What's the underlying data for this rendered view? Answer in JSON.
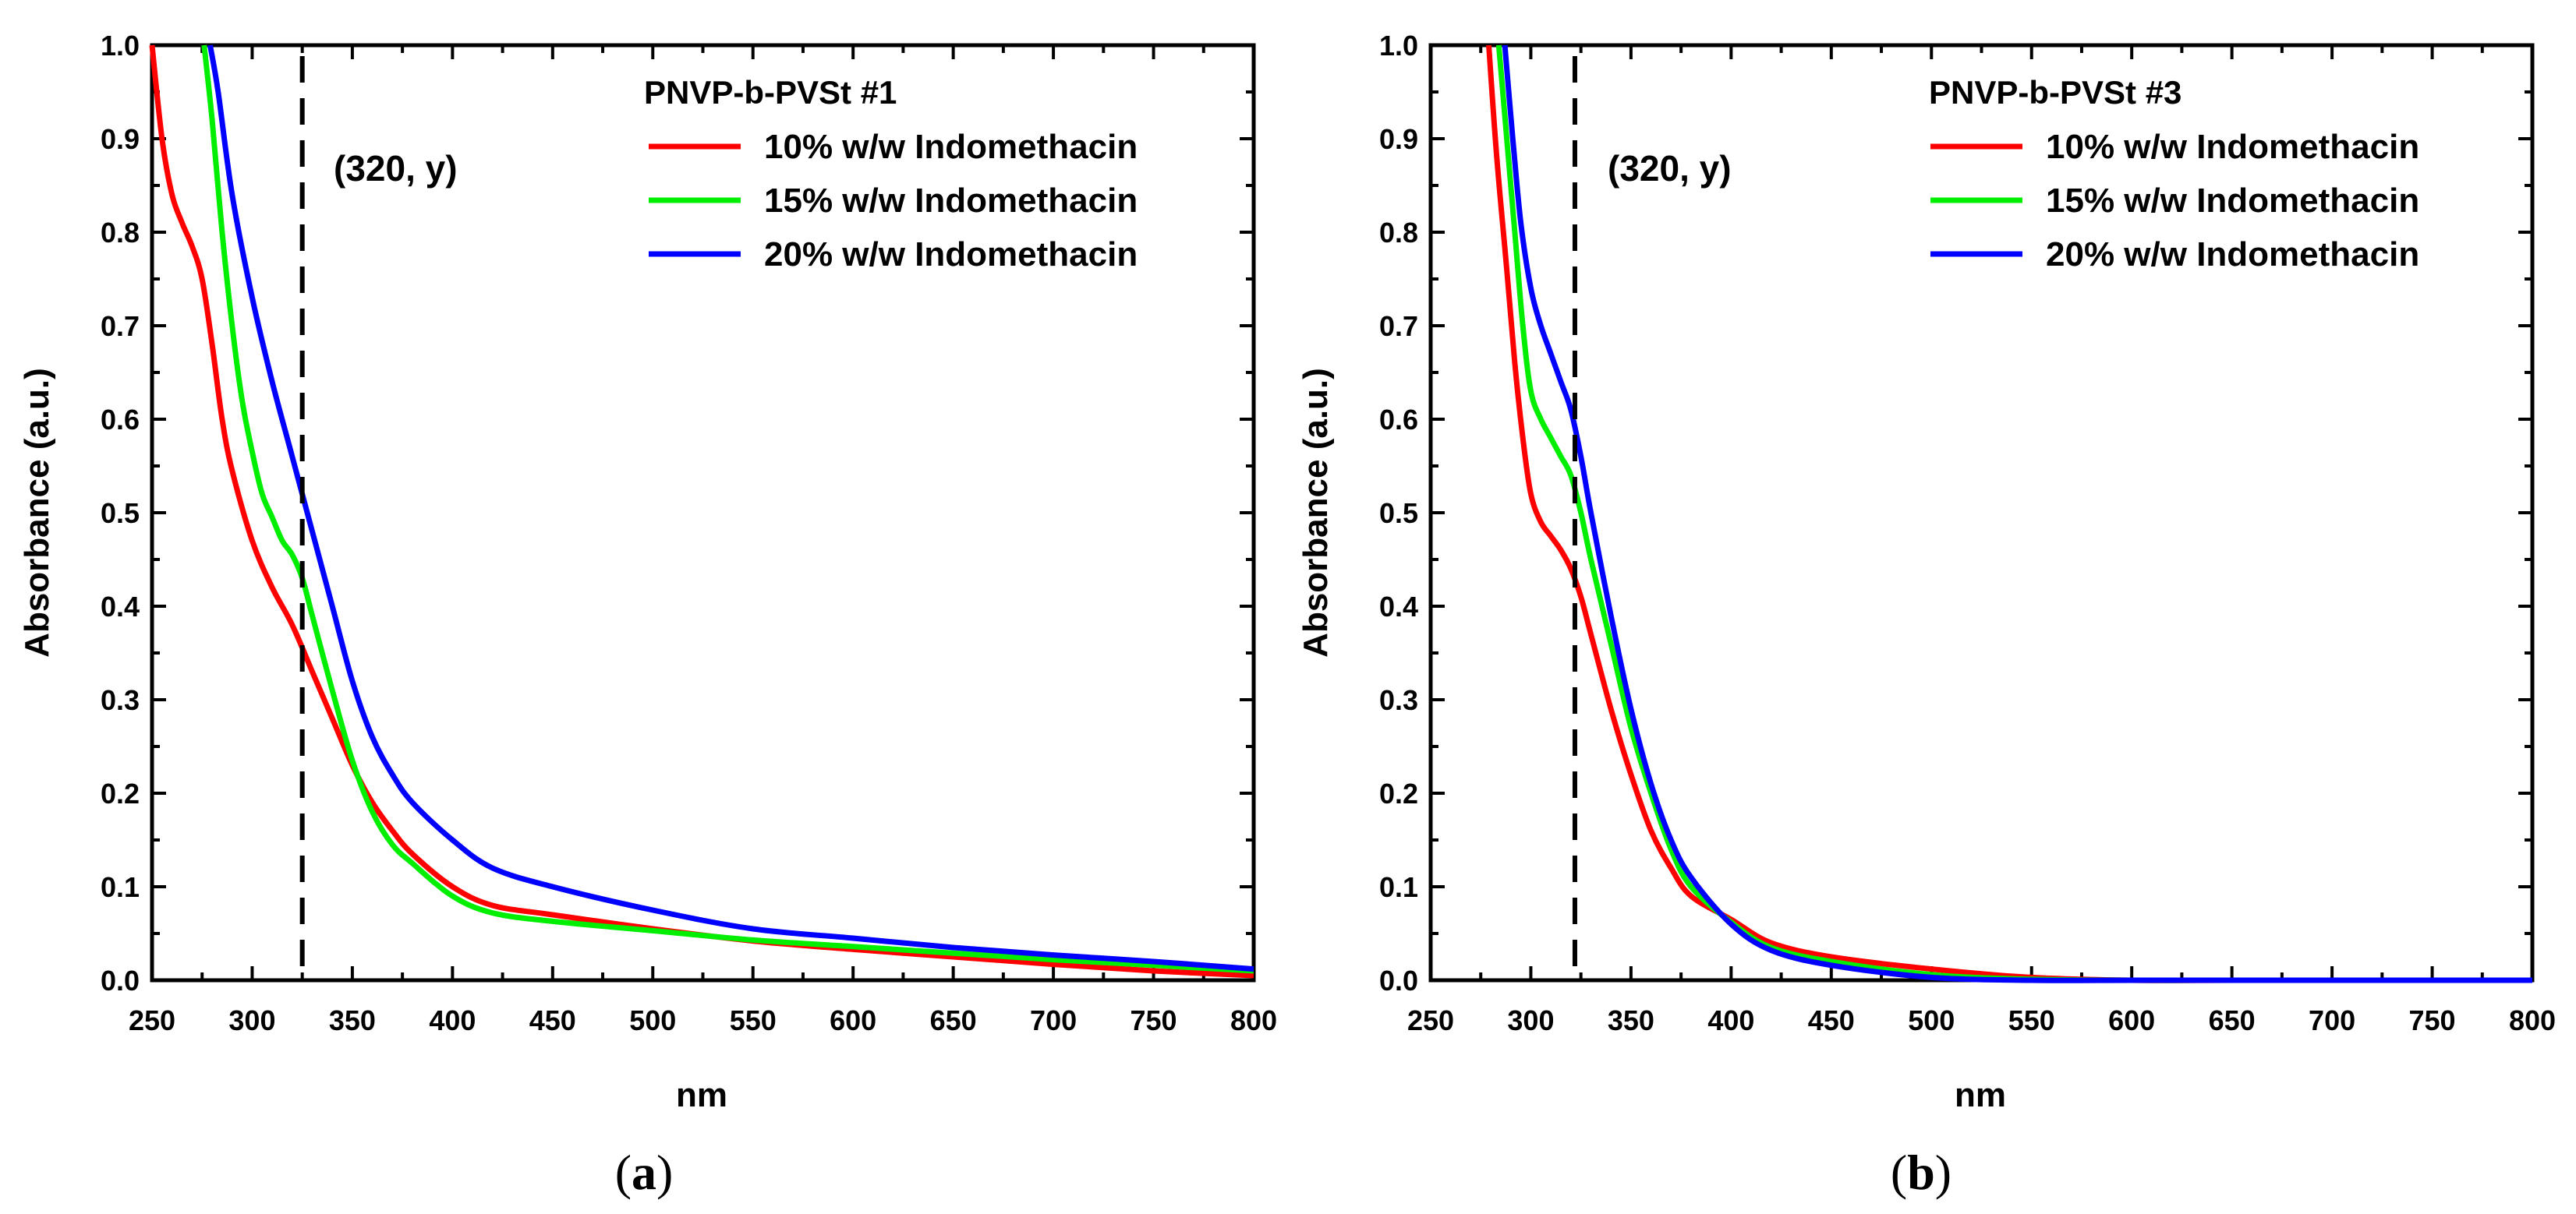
{
  "chart_data": [
    {
      "panel": "a",
      "type": "line",
      "panel_label_open": "(",
      "panel_label_letter": "a",
      "panel_label_close": ")",
      "legend_title": "PNVP-b-PVSt #1",
      "annotation": "(320, y)",
      "vline_x": 325,
      "xlabel": "nm",
      "ylabel": "Absorbance (a.u.)",
      "xlim": [
        250,
        800
      ],
      "ylim": [
        0.0,
        1.0
      ],
      "xticks": [
        "250",
        "300",
        "350",
        "400",
        "450",
        "500",
        "550",
        "600",
        "650",
        "700",
        "750",
        "800"
      ],
      "yticks": [
        "0.0",
        "0.1",
        "0.2",
        "0.3",
        "0.4",
        "0.5",
        "0.6",
        "0.7",
        "0.8",
        "0.9",
        "1.0"
      ],
      "series": [
        {
          "name": "10% w/w Indomethacin",
          "color": "#ff0000",
          "x": [
            250,
            255,
            260,
            265,
            270,
            275,
            280,
            285,
            290,
            300,
            310,
            320,
            330,
            340,
            350,
            360,
            370,
            380,
            400,
            420,
            450,
            500,
            550,
            600,
            650,
            700,
            750,
            800
          ],
          "y": [
            1.0,
            0.9,
            0.84,
            0.81,
            0.785,
            0.75,
            0.68,
            0.6,
            0.545,
            0.47,
            0.42,
            0.38,
            0.33,
            0.28,
            0.23,
            0.19,
            0.16,
            0.135,
            0.1,
            0.08,
            0.07,
            0.055,
            0.042,
            0.033,
            0.025,
            0.017,
            0.01,
            0.005
          ]
        },
        {
          "name": "15% w/w Indomethacin",
          "color": "#00ee00",
          "x": [
            276,
            280,
            285,
            290,
            295,
            300,
            305,
            310,
            315,
            320,
            325,
            330,
            340,
            350,
            360,
            370,
            380,
            400,
            420,
            450,
            500,
            550,
            600,
            650,
            700,
            750,
            800
          ],
          "y": [
            1.0,
            0.92,
            0.8,
            0.7,
            0.62,
            0.565,
            0.52,
            0.495,
            0.47,
            0.455,
            0.43,
            0.39,
            0.31,
            0.235,
            0.18,
            0.145,
            0.125,
            0.09,
            0.072,
            0.063,
            0.053,
            0.043,
            0.036,
            0.029,
            0.022,
            0.016,
            0.01
          ]
        },
        {
          "name": "20% w/w Indomethacin",
          "color": "#0000ff",
          "x": [
            279,
            283,
            290,
            300,
            310,
            320,
            330,
            340,
            350,
            360,
            370,
            380,
            400,
            420,
            450,
            500,
            550,
            600,
            650,
            700,
            750,
            800
          ],
          "y": [
            1.0,
            0.95,
            0.84,
            0.73,
            0.64,
            0.56,
            0.48,
            0.4,
            0.32,
            0.26,
            0.22,
            0.19,
            0.15,
            0.12,
            0.1,
            0.075,
            0.055,
            0.045,
            0.035,
            0.027,
            0.02,
            0.012
          ]
        }
      ]
    },
    {
      "panel": "b",
      "type": "line",
      "panel_label_open": "(",
      "panel_label_letter": "b",
      "panel_label_close": ")",
      "legend_title": "PNVP-b-PVSt #3",
      "annotation": "(320, y)",
      "vline_x": 322,
      "xlabel": "nm",
      "ylabel": "Absorbance (a.u.)",
      "xlim": [
        250,
        800
      ],
      "ylim": [
        0.0,
        1.0
      ],
      "xticks": [
        "250",
        "300",
        "350",
        "400",
        "450",
        "500",
        "550",
        "600",
        "650",
        "700",
        "750",
        "800"
      ],
      "yticks": [
        "0.0",
        "0.1",
        "0.2",
        "0.3",
        "0.4",
        "0.5",
        "0.6",
        "0.7",
        "0.8",
        "0.9",
        "1.0"
      ],
      "series": [
        {
          "name": "10% w/w Indomethacin",
          "color": "#ff0000",
          "x": [
            279,
            283,
            288,
            292,
            296,
            300,
            305,
            310,
            315,
            320,
            325,
            330,
            340,
            350,
            360,
            370,
            380,
            400,
            420,
            450,
            500,
            550,
            600,
            650,
            700,
            750,
            800
          ],
          "y": [
            1.0,
            0.88,
            0.76,
            0.66,
            0.58,
            0.52,
            0.49,
            0.475,
            0.46,
            0.44,
            0.41,
            0.37,
            0.29,
            0.22,
            0.16,
            0.12,
            0.09,
            0.065,
            0.04,
            0.025,
            0.012,
            0.003,
            0.0,
            0.0,
            0.0,
            0.0,
            0.0
          ]
        },
        {
          "name": "15% w/w Indomethacin",
          "color": "#00ee00",
          "x": [
            284,
            288,
            292,
            296,
            300,
            305,
            310,
            315,
            320,
            325,
            330,
            340,
            350,
            360,
            370,
            380,
            400,
            420,
            450,
            500,
            550,
            600,
            650,
            700,
            750,
            800
          ],
          "y": [
            1.0,
            0.9,
            0.8,
            0.7,
            0.63,
            0.6,
            0.58,
            0.56,
            0.54,
            0.5,
            0.45,
            0.36,
            0.27,
            0.2,
            0.14,
            0.1,
            0.062,
            0.035,
            0.02,
            0.006,
            0.001,
            0.0,
            0.0,
            0.0,
            0.0,
            0.0
          ]
        },
        {
          "name": "20% w/w Indomethacin",
          "color": "#0000ff",
          "x": [
            287,
            291,
            295,
            300,
            305,
            310,
            315,
            320,
            325,
            330,
            340,
            350,
            360,
            370,
            380,
            400,
            420,
            450,
            500,
            550,
            600,
            650,
            700,
            750,
            800
          ],
          "y": [
            1.0,
            0.9,
            0.81,
            0.74,
            0.7,
            0.67,
            0.64,
            0.61,
            0.56,
            0.5,
            0.39,
            0.29,
            0.21,
            0.15,
            0.11,
            0.06,
            0.032,
            0.016,
            0.003,
            0.0,
            0.0,
            0.0,
            0.0,
            0.0,
            0.0
          ]
        }
      ]
    }
  ]
}
